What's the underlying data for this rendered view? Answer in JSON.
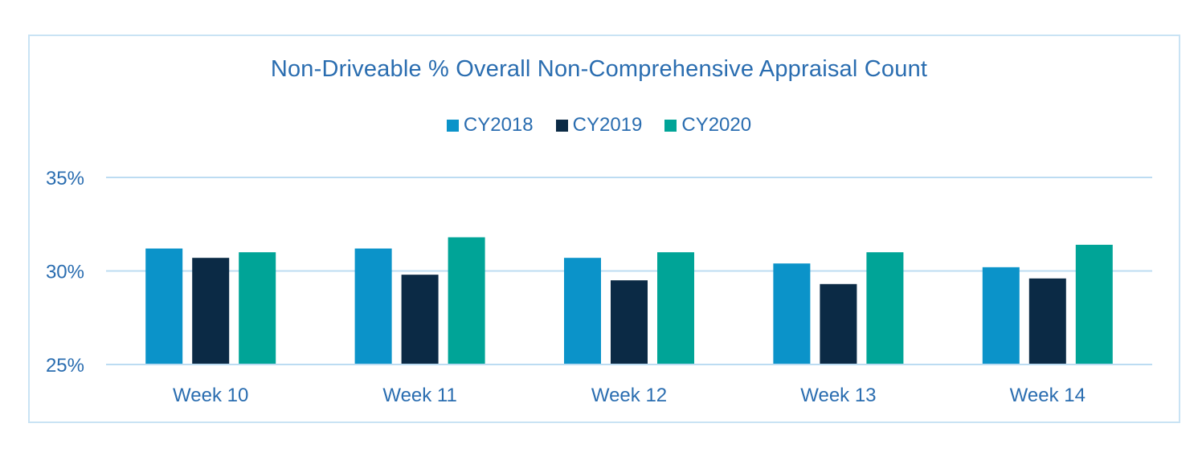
{
  "chart_data": {
    "type": "bar",
    "title": "Non-Driveable % Overall Non-Comprehensive Appraisal Count",
    "categories": [
      "Week 10",
      "Week 11",
      "Week 12",
      "Week 13",
      "Week 14"
    ],
    "series": [
      {
        "name": "CY2018",
        "color": "#0b93c9",
        "values": [
          31.2,
          31.2,
          30.7,
          30.4,
          30.2
        ]
      },
      {
        "name": "CY2019",
        "color": "#0b2a45",
        "values": [
          30.7,
          29.8,
          29.5,
          29.3,
          29.6
        ]
      },
      {
        "name": "CY2020",
        "color": "#00a497",
        "values": [
          31.0,
          31.8,
          31.0,
          31.0,
          31.4
        ]
      }
    ],
    "yticks": [
      "25%",
      "30%",
      "35%"
    ],
    "ytick_values": [
      25,
      30,
      35
    ],
    "ylim": [
      25,
      35
    ],
    "legend_position": "top-center",
    "grid": true,
    "gridline_color": "#bcdcf2"
  }
}
